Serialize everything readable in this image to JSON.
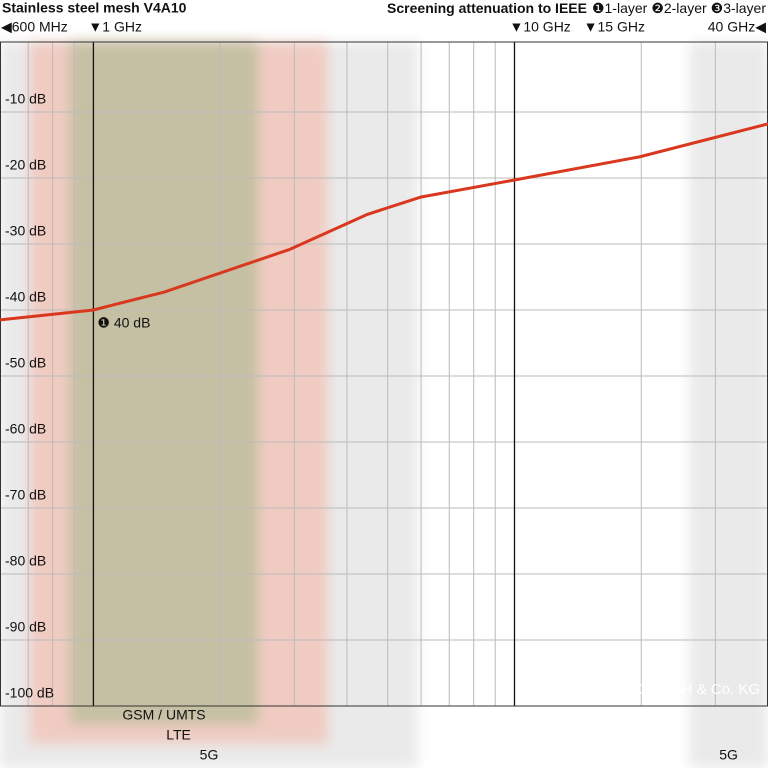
{
  "chart_data": {
    "type": "line",
    "title": "Stainless steel mesh V4A10",
    "legend_title": "Screening attenuation to IEEE",
    "legend": [
      "❶1-layer",
      "❷2-layer",
      "❸3-layer"
    ],
    "xscale": "log",
    "xlim": [
      0.6,
      40
    ],
    "ylim": [
      -100,
      0
    ],
    "xticks": [
      {
        "value": 0.6,
        "label": "◀600 MHz"
      },
      {
        "value": 1,
        "label": "▼1 GHz"
      },
      {
        "value": 10,
        "label": "▼10 GHz"
      },
      {
        "value": 15,
        "label": "▼15 GHz"
      },
      {
        "value": 40,
        "label": "40 GHz◀"
      }
    ],
    "xgrid": [
      0.7,
      0.8,
      0.9,
      1,
      2,
      3,
      4,
      5,
      6,
      7,
      8,
      9,
      10,
      20,
      30
    ],
    "major_xgrid": [
      1,
      10
    ],
    "yticks": [
      {
        "value": -10,
        "label": "-10 dB"
      },
      {
        "value": -20,
        "label": "-20 dB"
      },
      {
        "value": -30,
        "label": "-30 dB"
      },
      {
        "value": -40,
        "label": "-40 dB"
      },
      {
        "value": -50,
        "label": "-50 dB"
      },
      {
        "value": -60,
        "label": "-60 dB"
      },
      {
        "value": -70,
        "label": "-70 dB"
      },
      {
        "value": -80,
        "label": "-80 dB"
      },
      {
        "value": -90,
        "label": "-90 dB"
      },
      {
        "value": -100,
        "label": "-100 dB"
      }
    ],
    "grid": true,
    "bands": [
      {
        "label": "5G",
        "range": [
          0.6,
          5.9
        ],
        "color": "#d9d9d9"
      },
      {
        "label": "5G",
        "range": [
          26,
          40
        ],
        "color": "#d9d9d9"
      },
      {
        "label": "LTE",
        "range": [
          0.705,
          3.6
        ],
        "color": "#f4b7a8"
      },
      {
        "label": "GSM / UMTS",
        "range": [
          0.88,
          2.46
        ],
        "color": "#a9b98f"
      }
    ],
    "series": [
      {
        "name": "1-layer",
        "color": "#d9381e",
        "x": [
          0.6,
          1,
          1.12,
          1.47,
          2.93,
          4.48,
          5.98,
          10,
          19.8,
          40
        ],
        "values": [
          -41.5,
          -40,
          -39.2,
          -37.3,
          -30.8,
          -25.5,
          -22.9,
          -20.3,
          -16.8,
          -11.8
        ]
      }
    ],
    "annotation": {
      "text": "❶ 40 dB",
      "x": 1,
      "y": -40
    },
    "copyright": "© YSHIELD GmbH & Co. KG"
  }
}
